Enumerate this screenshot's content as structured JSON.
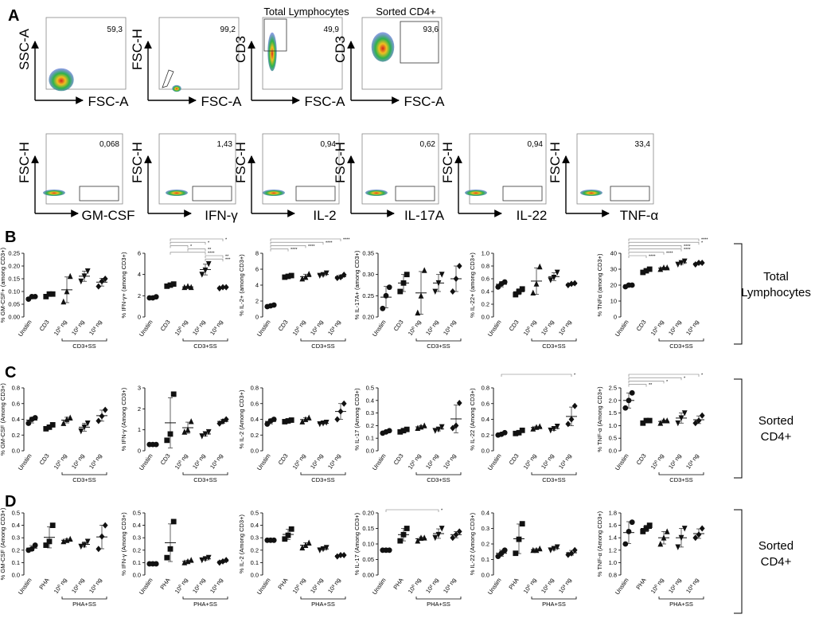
{
  "chart_data": {
    "type": "scatter",
    "title": "Flow cytometry gating and cytokine-positive CD4+ / CD3+ cells",
    "panel_labels": [
      "A",
      "B",
      "C",
      "D"
    ],
    "flow": {
      "row1": [
        {
          "y": "SSC-A",
          "x": "FSC-A",
          "value": "59,3",
          "title": ""
        },
        {
          "y": "FSC-H",
          "x": "FSC-A",
          "value": "99,2",
          "title": ""
        },
        {
          "y": "CD3",
          "x": "FSC-A",
          "value": "49,9",
          "title": "Total Lymphocytes"
        },
        {
          "y": "CD3",
          "x": "FSC-A",
          "value": "93,6",
          "title": "Sorted CD4+"
        }
      ],
      "row2": [
        {
          "y": "FSC-H",
          "x": "GM-CSF",
          "value": "0,068"
        },
        {
          "y": "FSC-H",
          "x": "IFN-γ",
          "value": "1,43"
        },
        {
          "y": "FSC-H",
          "x": "IL-2",
          "value": "0,94"
        },
        {
          "y": "FSC-H",
          "x": "IL-17A",
          "value": "0,62"
        },
        {
          "y": "FSC-H",
          "x": "IL-22",
          "value": "0,94"
        },
        {
          "y": "FSC-H",
          "x": "TNF-α",
          "value": "33,4"
        }
      ]
    },
    "row_labels": {
      "B": [
        "Total",
        "Lymphocytes"
      ],
      "C": [
        "Sorted",
        "CD4+"
      ],
      "D": [
        "Sorted",
        "CD4+"
      ]
    },
    "rows": [
      {
        "key": "B",
        "categories": [
          "Unstim",
          "CD3",
          "10⁰ ng",
          "10² ng",
          "10³ ng"
        ],
        "group_label": "CD3+SS",
        "plots": [
          {
            "ylabel": "% GM-CSF+ (among CD3+)",
            "ylim": [
              0,
              0.25
            ],
            "ticks": [
              "0.00",
              "0.05",
              "0.10",
              "0.15",
              "0.20",
              "0.25"
            ],
            "values": [
              [
                0.07,
                0.08,
                0.08
              ],
              [
                0.08,
                0.09,
                0.09
              ],
              [
                0.06,
                0.1,
                0.16
              ],
              [
                0.14,
                0.16,
                0.18
              ],
              [
                0.12,
                0.14,
                0.15
              ]
            ],
            "sig": []
          },
          {
            "ylabel": "% IFN-γ+ (among CD3+)",
            "ylim": [
              0,
              6
            ],
            "ticks": [
              "0",
              "2",
              "4",
              "6"
            ],
            "values": [
              [
                1.8,
                1.8,
                1.9
              ],
              [
                2.9,
                3.0,
                3.1
              ],
              [
                2.8,
                2.9,
                2.8
              ],
              [
                4.0,
                4.4,
                5.0
              ],
              [
                2.7,
                2.8,
                2.8
              ]
            ],
            "sig": [
              [
                "*",
                1,
                4
              ],
              [
                "*",
                1,
                3
              ],
              [
                "*",
                1,
                2
              ],
              [
                "**",
                2,
                3
              ],
              [
                "****",
                1,
                3
              ],
              [
                "**",
                3,
                4
              ],
              [
                "***",
                3,
                4
              ]
            ]
          },
          {
            "ylabel": "% IL-2+ (among CD3+)",
            "ylim": [
              0,
              8
            ],
            "ticks": [
              "0",
              "2",
              "4",
              "6",
              "8"
            ],
            "values": [
              [
                1.3,
                1.4,
                1.5
              ],
              [
                5.0,
                5.1,
                5.2
              ],
              [
                4.8,
                5.0,
                5.4
              ],
              [
                5.2,
                5.3,
                5.5
              ],
              [
                4.9,
                5.0,
                5.3
              ]
            ],
            "sig": [
              [
                "****",
                0,
                4
              ],
              [
                "****",
                0,
                3
              ],
              [
                "****",
                0,
                2
              ],
              [
                "****",
                0,
                1
              ]
            ]
          },
          {
            "ylabel": "% IL-17A+ (among CD3+)",
            "ylim": [
              0.2,
              0.35
            ],
            "ticks": [
              "0.20",
              "0.25",
              "0.30",
              "0.35"
            ],
            "values": [
              [
                0.22,
                0.25,
                0.27
              ],
              [
                0.26,
                0.28,
                0.3
              ],
              [
                0.21,
                0.25,
                0.31
              ],
              [
                0.26,
                0.28,
                0.3
              ],
              [
                0.26,
                0.29,
                0.32
              ]
            ],
            "sig": []
          },
          {
            "ylabel": "% IL-22+ (among CD3+)",
            "ylim": [
              0,
              1.0
            ],
            "ticks": [
              "0.0",
              "0.2",
              "0.4",
              "0.6",
              "0.8",
              "1.0"
            ],
            "values": [
              [
                0.47,
                0.52,
                0.55
              ],
              [
                0.35,
                0.4,
                0.44
              ],
              [
                0.38,
                0.52,
                0.79
              ],
              [
                0.58,
                0.62,
                0.7
              ],
              [
                0.5,
                0.52,
                0.53
              ]
            ],
            "sig": []
          },
          {
            "ylabel": "% TNFα (among CD3+)",
            "ylim": [
              0,
              40
            ],
            "ticks": [
              "0",
              "10",
              "20",
              "30",
              "40"
            ],
            "values": [
              [
                19,
                20,
                20
              ],
              [
                28,
                29,
                30
              ],
              [
                30,
                31,
                31
              ],
              [
                33,
                34,
                35
              ],
              [
                33,
                34,
                34
              ]
            ],
            "sig": [
              [
                "****",
                0,
                4
              ],
              [
                "*",
                0,
                4
              ],
              [
                "****",
                0,
                3
              ],
              [
                "****",
                0,
                3
              ],
              [
                "****",
                0,
                2
              ],
              [
                "****",
                0,
                1
              ]
            ]
          }
        ]
      },
      {
        "key": "C",
        "categories": [
          "Unstim",
          "CD3",
          "10⁰ ng",
          "10² ng",
          "10³ ng"
        ],
        "group_label": "CD3+SS",
        "plots": [
          {
            "ylabel": "% GM-CSF (Among CD3+)",
            "ylim": [
              0,
              0.8
            ],
            "ticks": [
              "0.0",
              "0.2",
              "0.4",
              "0.6",
              "0.8"
            ],
            "values": [
              [
                0.35,
                0.4,
                0.42
              ],
              [
                0.28,
                0.3,
                0.33
              ],
              [
                0.35,
                0.4,
                0.42
              ],
              [
                0.25,
                0.3,
                0.35
              ],
              [
                0.38,
                0.44,
                0.52
              ]
            ],
            "sig": []
          },
          {
            "ylabel": "% IFN-γ (Among CD3+)",
            "ylim": [
              0,
              3
            ],
            "ticks": [
              "0",
              "1",
              "2",
              "3"
            ],
            "values": [
              [
                0.3,
                0.3,
                0.3
              ],
              [
                0.5,
                0.8,
                2.7
              ],
              [
                0.9,
                1.0,
                1.4
              ],
              [
                0.7,
                0.8,
                0.9
              ],
              [
                1.3,
                1.4,
                1.5
              ]
            ],
            "sig": []
          },
          {
            "ylabel": "% IL-2 (Among CD3+)",
            "ylim": [
              0,
              0.8
            ],
            "ticks": [
              "0.0",
              "0.2",
              "0.4",
              "0.6",
              "0.8"
            ],
            "values": [
              [
                0.34,
                0.38,
                0.4
              ],
              [
                0.37,
                0.38,
                0.39
              ],
              [
                0.37,
                0.4,
                0.42
              ],
              [
                0.34,
                0.35,
                0.36
              ],
              [
                0.4,
                0.5,
                0.6
              ]
            ],
            "sig": []
          },
          {
            "ylabel": "% IL-17 (Among CD3+)",
            "ylim": [
              0,
              0.5
            ],
            "ticks": [
              "0.0",
              "0.1",
              "0.2",
              "0.3",
              "0.4",
              "0.5"
            ],
            "values": [
              [
                0.14,
                0.15,
                0.16
              ],
              [
                0.15,
                0.16,
                0.17
              ],
              [
                0.18,
                0.19,
                0.2
              ],
              [
                0.16,
                0.17,
                0.19
              ],
              [
                0.18,
                0.2,
                0.38
              ]
            ],
            "sig": []
          },
          {
            "ylabel": "% IL-22 (Among CD3+)",
            "ylim": [
              0,
              0.8
            ],
            "ticks": [
              "0.0",
              "0.2",
              "0.4",
              "0.6",
              "0.8"
            ],
            "values": [
              [
                0.2,
                0.21,
                0.23
              ],
              [
                0.22,
                0.23,
                0.26
              ],
              [
                0.28,
                0.3,
                0.31
              ],
              [
                0.26,
                0.28,
                0.31
              ],
              [
                0.34,
                0.4,
                0.57
              ]
            ],
            "sig": [
              [
                "*",
                0,
                4
              ]
            ]
          },
          {
            "ylabel": "% TNF-α (Among CD3+)",
            "ylim": [
              0,
              2.5
            ],
            "ticks": [
              "0.0",
              "0.5",
              "1.0",
              "1.5",
              "2.0",
              "2.5"
            ],
            "values": [
              [
                1.7,
                2.0,
                2.3
              ],
              [
                1.1,
                1.2,
                1.2
              ],
              [
                1.1,
                1.2,
                1.2
              ],
              [
                1.1,
                1.3,
                1.5
              ],
              [
                1.1,
                1.2,
                1.4
              ]
            ],
            "sig": [
              [
                "*",
                0,
                4
              ],
              [
                "*",
                0,
                3
              ],
              [
                "*",
                0,
                2
              ],
              [
                "**",
                0,
                1
              ]
            ]
          }
        ]
      },
      {
        "key": "D",
        "categories": [
          "Unstim",
          "PHA",
          "10⁰ ng",
          "10² ng",
          "10³ ng"
        ],
        "group_label": "PHA+SS",
        "plots": [
          {
            "ylabel": "% GM-CSF (Among CD3+)",
            "ylim": [
              0,
              0.5
            ],
            "ticks": [
              "0.0",
              "0.1",
              "0.2",
              "0.3",
              "0.4",
              "0.5"
            ],
            "values": [
              [
                0.2,
                0.21,
                0.24
              ],
              [
                0.24,
                0.27,
                0.4
              ],
              [
                0.27,
                0.28,
                0.29
              ],
              [
                0.23,
                0.24,
                0.27
              ],
              [
                0.21,
                0.31,
                0.4
              ]
            ],
            "sig": []
          },
          {
            "ylabel": "% IFN-γ (Among CD3+)",
            "ylim": [
              0,
              0.5
            ],
            "ticks": [
              "0.0",
              "0.1",
              "0.2",
              "0.3",
              "0.4",
              "0.5"
            ],
            "values": [
              [
                0.09,
                0.09,
                0.09
              ],
              [
                0.14,
                0.21,
                0.43
              ],
              [
                0.1,
                0.11,
                0.12
              ],
              [
                0.12,
                0.13,
                0.14
              ],
              [
                0.1,
                0.11,
                0.12
              ]
            ],
            "sig": []
          },
          {
            "ylabel": "% IL-2 (Among CD3+)",
            "ylim": [
              0,
              0.5
            ],
            "ticks": [
              "0.0",
              "0.1",
              "0.2",
              "0.3",
              "0.4",
              "0.5"
            ],
            "values": [
              [
                0.28,
                0.28,
                0.28
              ],
              [
                0.29,
                0.32,
                0.37
              ],
              [
                0.22,
                0.24,
                0.26
              ],
              [
                0.2,
                0.21,
                0.22
              ],
              [
                0.15,
                0.16,
                0.16
              ]
            ],
            "sig": []
          },
          {
            "ylabel": "% IL-17 (Among CD3+)",
            "ylim": [
              0,
              0.2
            ],
            "ticks": [
              "0.00",
              "0.05",
              "0.10",
              "0.15",
              "0.20"
            ],
            "values": [
              [
                0.08,
                0.08,
                0.08
              ],
              [
                0.11,
                0.13,
                0.15
              ],
              [
                0.11,
                0.12,
                0.12
              ],
              [
                0.12,
                0.13,
                0.15
              ],
              [
                0.12,
                0.13,
                0.14
              ]
            ],
            "sig": [
              [
                "*",
                0,
                3
              ]
            ]
          },
          {
            "ylabel": "% IL-22 (Among CD3+)",
            "ylim": [
              0,
              0.4
            ],
            "ticks": [
              "0.0",
              "0.1",
              "0.2",
              "0.3",
              "0.4"
            ],
            "values": [
              [
                0.12,
                0.14,
                0.16
              ],
              [
                0.14,
                0.23,
                0.33
              ],
              [
                0.16,
                0.16,
                0.17
              ],
              [
                0.16,
                0.17,
                0.18
              ],
              [
                0.13,
                0.14,
                0.16
              ]
            ],
            "sig": []
          },
          {
            "ylabel": "% TNF-α (Among CD3+)",
            "ylim": [
              0.8,
              1.8
            ],
            "ticks": [
              "0.8",
              "1.0",
              "1.2",
              "1.4",
              "1.6",
              "1.8"
            ],
            "values": [
              [
                1.3,
                1.5,
                1.65
              ],
              [
                1.5,
                1.55,
                1.6
              ],
              [
                1.3,
                1.4,
                1.5
              ],
              [
                1.25,
                1.4,
                1.55
              ],
              [
                1.4,
                1.45,
                1.55
              ]
            ],
            "sig": []
          }
        ]
      }
    ]
  }
}
